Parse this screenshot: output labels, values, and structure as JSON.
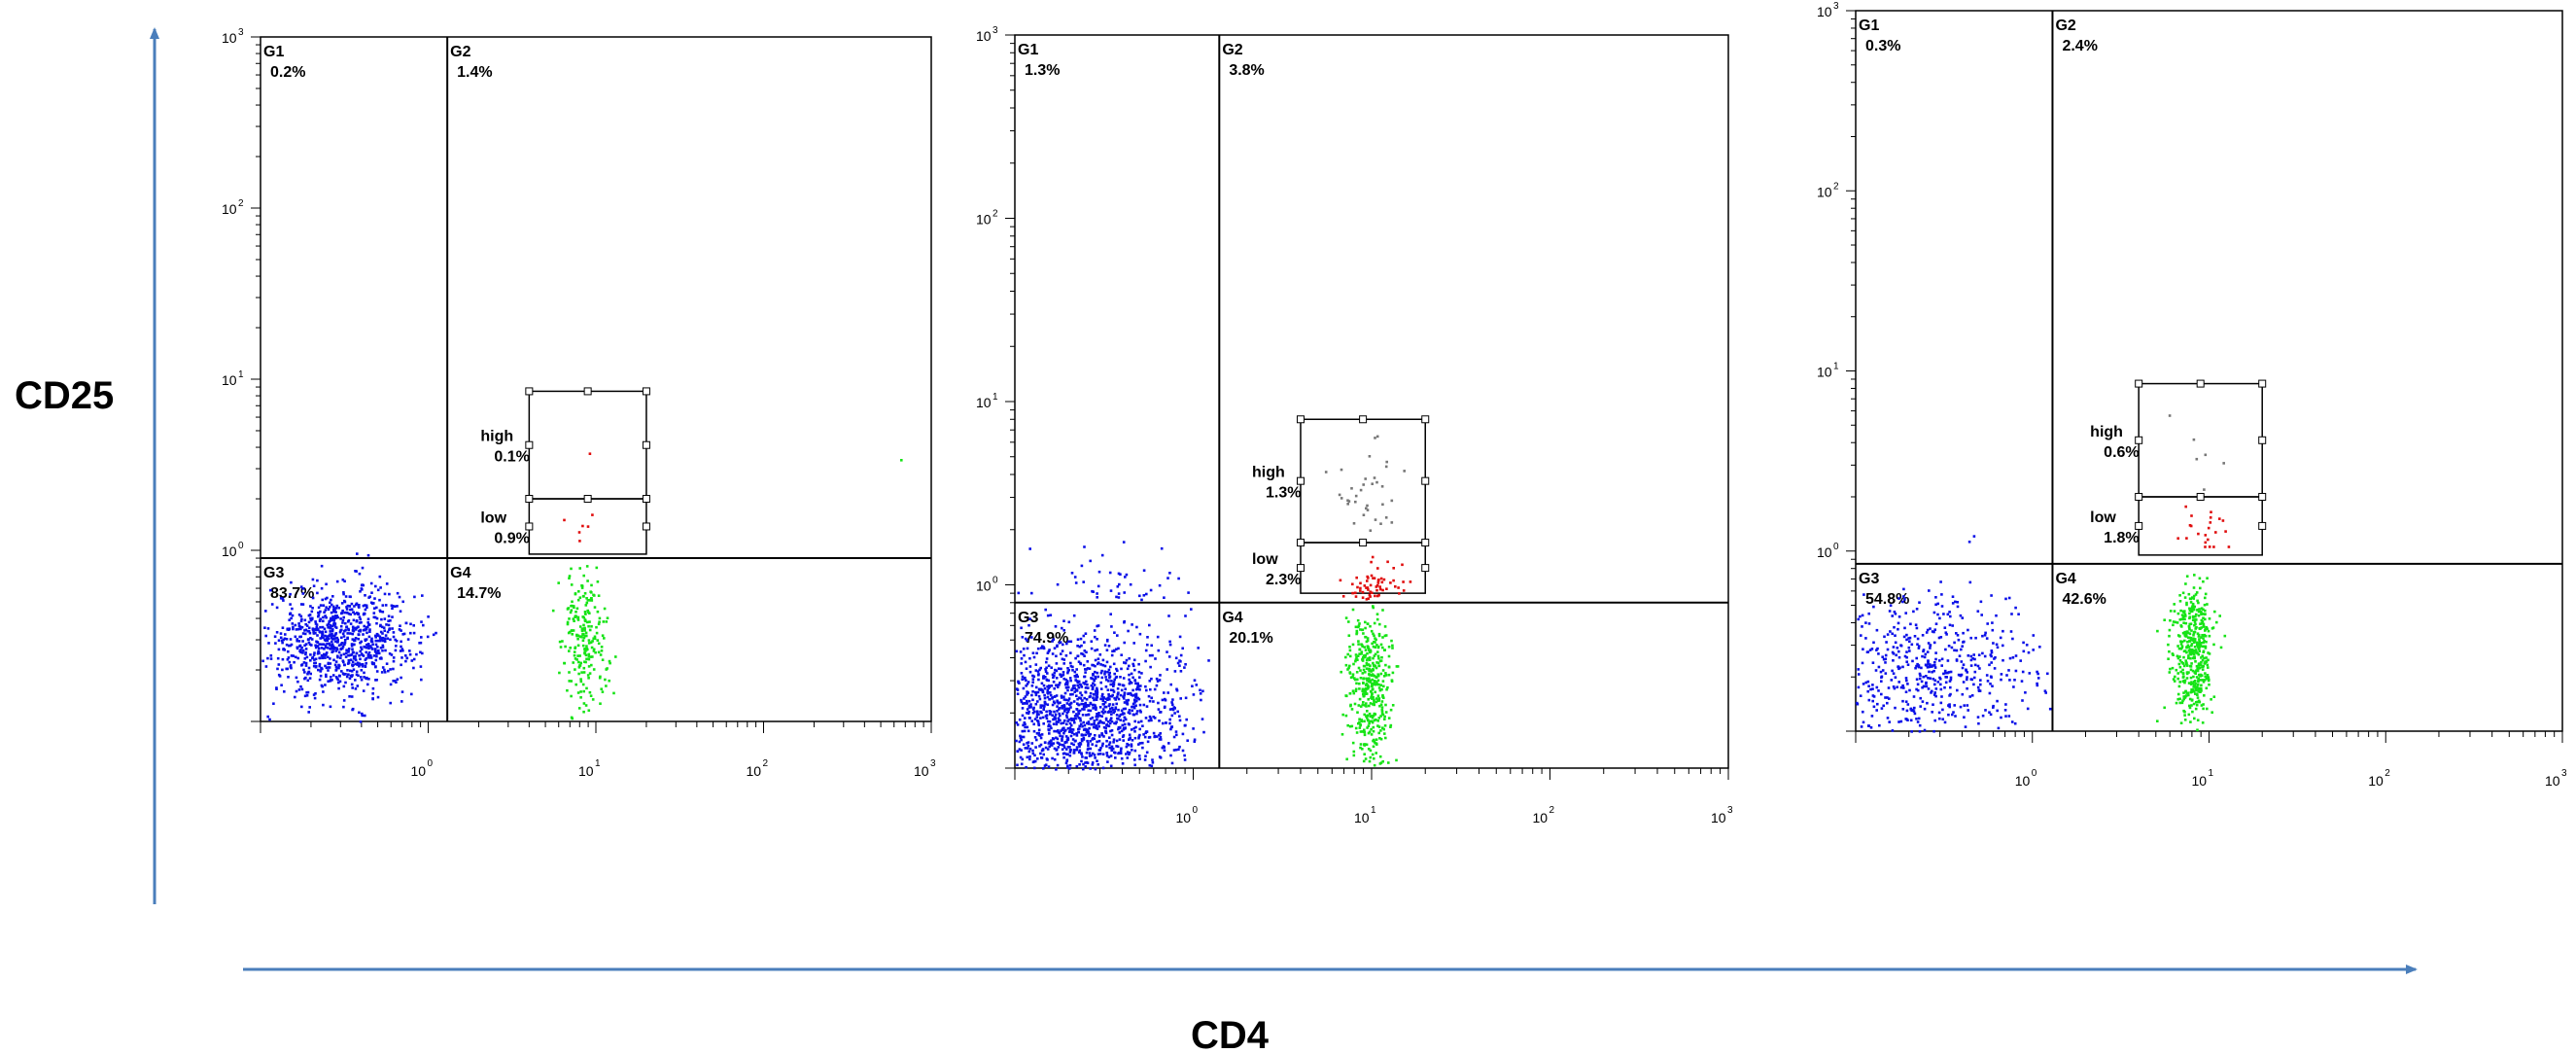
{
  "figure": {
    "y_axis_title": "CD25",
    "x_axis_title": "CD4",
    "arrow_color": "#4a7ebb"
  },
  "colors": {
    "G3": "#0b10e8",
    "G4": "#16e316",
    "low": "#e00d0d",
    "high": "#777777",
    "other": "#16e316",
    "axis": "#000000"
  },
  "chart_data": [
    {
      "type": "scatter",
      "title": "",
      "xscale": "log",
      "yscale": "log",
      "xlim": [
        0.1,
        1000
      ],
      "ylim": [
        0.1,
        1000
      ],
      "x_ticks": [
        {
          "base": "10",
          "exp": "0"
        },
        {
          "base": "10",
          "exp": "1"
        },
        {
          "base": "10",
          "exp": "2"
        },
        {
          "base": "10",
          "exp": "3"
        }
      ],
      "y_ticks": [
        {
          "base": "10",
          "exp": "0"
        },
        {
          "base": "10",
          "exp": "1"
        },
        {
          "base": "10",
          "exp": "2"
        },
        {
          "base": "10",
          "exp": "3"
        }
      ],
      "quadrant_split": {
        "x": 1.3,
        "y": 0.9
      },
      "gates": [
        {
          "name": "G1",
          "percent": "0.2%"
        },
        {
          "name": "G2",
          "percent": "1.4%"
        },
        {
          "name": "G3",
          "percent": "83.7%"
        },
        {
          "name": "G4",
          "percent": "14.7%"
        }
      ],
      "subgates": [
        {
          "name": "high",
          "percent": "0.1%",
          "x_range": [
            4,
            20
          ],
          "y_range": [
            2,
            8.5
          ]
        },
        {
          "name": "low",
          "percent": "0.9%",
          "x_range": [
            4,
            20
          ],
          "y_range": [
            0.95,
            2
          ]
        }
      ],
      "populations": [
        {
          "name": "G3",
          "color_key": "G3",
          "count": 900,
          "x_center": 0.3,
          "x_spread": 0.22,
          "y_center": 0.3,
          "y_spread": 0.16,
          "x_range": [
            0.1,
            1.1
          ],
          "y_range": [
            0.1,
            0.85
          ]
        },
        {
          "name": "G4",
          "color_key": "G4",
          "count": 230,
          "x_center": 8.5,
          "x_spread": 0.07,
          "y_center": 0.3,
          "y_spread": 0.2,
          "x_range": [
            4,
            15
          ],
          "y_range": [
            0.1,
            0.88
          ]
        },
        {
          "name": "low",
          "color_key": "low",
          "count": 6,
          "x_center": 8.5,
          "x_spread": 0.06,
          "y_center": 1.4,
          "y_spread": 0.08,
          "x_range": [
            5,
            15
          ],
          "y_range": [
            0.98,
            1.9
          ]
        },
        {
          "name": "high",
          "color_key": "low",
          "count": 1,
          "x_center": 9,
          "x_spread": 0.02,
          "y_center": 3.5,
          "y_spread": 0.02,
          "x_range": [
            8,
            10
          ],
          "y_range": [
            3,
            4
          ]
        },
        {
          "name": "G1 events",
          "color_key": "G3",
          "count": 2,
          "x_center": 0.4,
          "x_spread": 0.05,
          "y_center": 0.95,
          "y_spread": 0.02,
          "x_range": [
            0.3,
            0.6
          ],
          "y_range": [
            0.9,
            1.05
          ]
        },
        {
          "name": "outlier",
          "color_key": "other",
          "count": 1,
          "x_center": 650,
          "x_spread": 0.01,
          "y_center": 3.3,
          "y_spread": 0.01,
          "x_range": [
            600,
            700
          ],
          "y_range": [
            3,
            3.6
          ]
        }
      ]
    },
    {
      "type": "scatter",
      "title": "",
      "xscale": "log",
      "yscale": "log",
      "xlim": [
        0.1,
        1000
      ],
      "ylim": [
        0.1,
        1000
      ],
      "x_ticks": [
        {
          "base": "10",
          "exp": "0"
        },
        {
          "base": "10",
          "exp": "1"
        },
        {
          "base": "10",
          "exp": "2"
        },
        {
          "base": "10",
          "exp": "3"
        }
      ],
      "y_ticks": [
        {
          "base": "10",
          "exp": "0"
        },
        {
          "base": "10",
          "exp": "1"
        },
        {
          "base": "10",
          "exp": "2"
        },
        {
          "base": "10",
          "exp": "3"
        }
      ],
      "quadrant_split": {
        "x": 1.4,
        "y": 0.8
      },
      "gates": [
        {
          "name": "G1",
          "percent": "1.3%"
        },
        {
          "name": "G2",
          "percent": "3.8%"
        },
        {
          "name": "G3",
          "percent": "74.9%"
        },
        {
          "name": "G4",
          "percent": "20.1%"
        }
      ],
      "subgates": [
        {
          "name": "high",
          "percent": "1.3%",
          "x_range": [
            4,
            20
          ],
          "y_range": [
            1.7,
            8
          ]
        },
        {
          "name": "low",
          "percent": "2.3%",
          "x_range": [
            4,
            20
          ],
          "y_range": [
            0.9,
            1.7
          ]
        }
      ],
      "populations": [
        {
          "name": "G3",
          "color_key": "G3",
          "count": 1300,
          "x_center": 0.22,
          "x_spread": 0.3,
          "y_center": 0.2,
          "y_spread": 0.22,
          "x_range": [
            0.1,
            1.25
          ],
          "y_range": [
            0.1,
            0.75
          ]
        },
        {
          "name": "G4",
          "color_key": "G4",
          "count": 420,
          "x_center": 9.5,
          "x_spread": 0.06,
          "y_center": 0.3,
          "y_spread": 0.22,
          "x_range": [
            3,
            25
          ],
          "y_range": [
            0.1,
            0.78
          ]
        },
        {
          "name": "low",
          "color_key": "low",
          "count": 60,
          "x_center": 10,
          "x_spread": 0.08,
          "y_center": 1.05,
          "y_spread": 0.06,
          "x_range": [
            5,
            19
          ],
          "y_range": [
            0.82,
            1.6
          ]
        },
        {
          "name": "high",
          "color_key": "high",
          "count": 35,
          "x_center": 9,
          "x_spread": 0.1,
          "y_center": 3.5,
          "y_spread": 0.15,
          "x_range": [
            5,
            16
          ],
          "y_range": [
            2,
            7.5
          ]
        },
        {
          "name": "G1 events",
          "color_key": "G3",
          "count": 45,
          "x_center": 0.35,
          "x_spread": 0.25,
          "y_center": 0.95,
          "y_spread": 0.12,
          "x_range": [
            0.1,
            1.2
          ],
          "y_range": [
            0.82,
            2.6
          ]
        }
      ]
    },
    {
      "type": "scatter",
      "title": "",
      "xscale": "log",
      "yscale": "log",
      "xlim": [
        0.1,
        1000
      ],
      "ylim": [
        0.1,
        1000
      ],
      "x_ticks": [
        {
          "base": "10",
          "exp": "0"
        },
        {
          "base": "10",
          "exp": "1"
        },
        {
          "base": "10",
          "exp": "2"
        },
        {
          "base": "10",
          "exp": "3"
        }
      ],
      "y_ticks": [
        {
          "base": "10",
          "exp": "0"
        },
        {
          "base": "10",
          "exp": "1"
        },
        {
          "base": "10",
          "exp": "2"
        },
        {
          "base": "10",
          "exp": "3"
        }
      ],
      "quadrant_split": {
        "x": 1.3,
        "y": 0.85
      },
      "gates": [
        {
          "name": "G1",
          "percent": "0.3%"
        },
        {
          "name": "G2",
          "percent": "2.4%"
        },
        {
          "name": "G3",
          "percent": "54.8%"
        },
        {
          "name": "G4",
          "percent": "42.6%"
        }
      ],
      "subgates": [
        {
          "name": "high",
          "percent": "0.6%",
          "x_range": [
            4,
            20
          ],
          "y_range": [
            2,
            8.5
          ]
        },
        {
          "name": "low",
          "percent": "1.8%",
          "x_range": [
            4,
            20
          ],
          "y_range": [
            0.95,
            2
          ]
        }
      ],
      "populations": [
        {
          "name": "G3",
          "color_key": "G3",
          "count": 500,
          "x_center": 0.25,
          "x_spread": 0.35,
          "y_center": 0.22,
          "y_spread": 0.22,
          "x_range": [
            0.1,
            1.25
          ],
          "y_range": [
            0.1,
            0.8
          ]
        },
        {
          "name": "G4",
          "color_key": "G4",
          "count": 450,
          "x_center": 8,
          "x_spread": 0.06,
          "y_center": 0.28,
          "y_spread": 0.2,
          "x_range": [
            3,
            15
          ],
          "y_range": [
            0.1,
            0.83
          ]
        },
        {
          "name": "low",
          "color_key": "low",
          "count": 22,
          "x_center": 9,
          "x_spread": 0.07,
          "y_center": 1.3,
          "y_spread": 0.07,
          "x_range": [
            5,
            15
          ],
          "y_range": [
            0.95,
            1.9
          ]
        },
        {
          "name": "high",
          "color_key": "high",
          "count": 6,
          "x_center": 9,
          "x_spread": 0.08,
          "y_center": 4,
          "y_spread": 0.12,
          "x_range": [
            5,
            14
          ],
          "y_range": [
            2.2,
            6
          ]
        },
        {
          "name": "G1 events",
          "color_key": "G3",
          "count": 2,
          "x_center": 0.4,
          "x_spread": 0.1,
          "y_center": 1.3,
          "y_spread": 0.1,
          "x_range": [
            0.2,
            0.9
          ],
          "y_range": [
            0.9,
            2
          ]
        }
      ]
    }
  ]
}
